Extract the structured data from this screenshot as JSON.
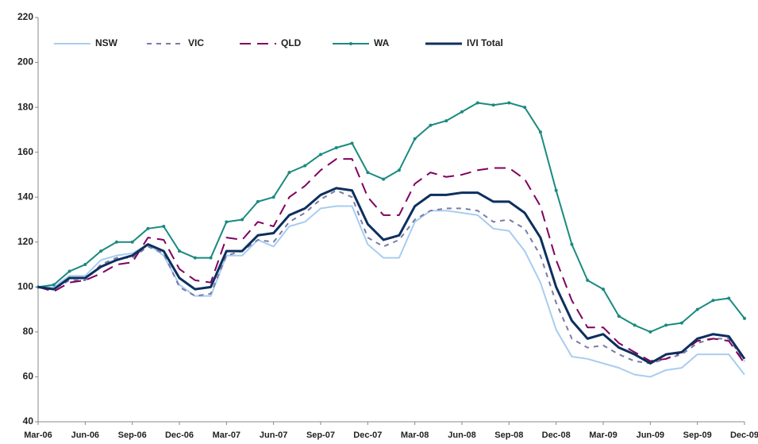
{
  "chart_data": {
    "type": "line",
    "categories": [
      "Mar-06",
      null,
      null,
      "Jun-06",
      null,
      null,
      "Sep-06",
      null,
      null,
      "Dec-06",
      null,
      null,
      "Mar-07",
      null,
      null,
      "Jun-07",
      null,
      null,
      "Sep-07",
      null,
      null,
      "Dec-07",
      null,
      null,
      "Mar-08",
      null,
      null,
      "Jun-08",
      null,
      null,
      "Sep-08",
      null,
      null,
      "Dec-08",
      null,
      null,
      "Mar-09",
      null,
      null,
      "Jun-09",
      null,
      null,
      "Sep-09",
      null,
      null,
      "Dec-09"
    ],
    "series": [
      {
        "name": "NSW",
        "color": "#a7cdf0",
        "dash": "solid",
        "values": [
          100,
          100,
          105,
          105,
          112,
          114,
          115,
          119,
          114,
          101,
          96,
          96,
          114,
          114,
          121,
          118,
          127,
          129,
          135,
          136,
          136,
          119,
          113,
          113,
          129,
          134,
          134,
          133,
          132,
          126,
          125,
          116,
          102,
          81,
          69,
          68,
          66,
          64,
          61,
          60,
          63,
          64,
          70,
          70,
          70,
          61
        ]
      },
      {
        "name": "VIC",
        "color": "#7a7aa8",
        "dash": "short",
        "values": [
          100,
          99,
          103,
          103,
          110,
          113,
          113,
          118,
          115,
          100,
          96,
          97,
          114,
          116,
          121,
          120,
          129,
          133,
          139,
          143,
          140,
          122,
          118,
          121,
          130,
          134,
          135,
          135,
          134,
          129,
          130,
          126,
          114,
          93,
          77,
          73,
          74,
          70,
          67,
          66,
          68,
          70,
          75,
          77,
          77,
          67
        ]
      },
      {
        "name": "QLD",
        "color": "#800060",
        "dash": "long",
        "values": [
          100,
          98,
          102,
          103,
          106,
          110,
          111,
          122,
          121,
          108,
          103,
          102,
          122,
          121,
          129,
          127,
          140,
          145,
          152,
          157,
          157,
          140,
          132,
          132,
          146,
          151,
          149,
          150,
          152,
          153,
          153,
          148,
          136,
          112,
          94,
          82,
          82,
          75,
          71,
          67,
          68,
          71,
          76,
          77,
          76,
          66
        ]
      },
      {
        "name": "WA",
        "color": "#1a8a80",
        "dash": "solid",
        "markers": true,
        "values": [
          100,
          101,
          107,
          110,
          116,
          120,
          120,
          126,
          127,
          116,
          113,
          113,
          129,
          130,
          138,
          140,
          151,
          154,
          159,
          162,
          164,
          151,
          148,
          152,
          166,
          172,
          174,
          178,
          182,
          181,
          182,
          180,
          169,
          143,
          119,
          103,
          99,
          87,
          83,
          80,
          83,
          84,
          90,
          94,
          95,
          86
        ]
      },
      {
        "name": "IVI Total",
        "color": "#0d2f5e",
        "dash": "solid",
        "width": 3,
        "values": [
          100,
          99,
          104,
          104,
          109,
          112,
          114,
          119,
          116,
          104,
          99,
          100,
          116,
          116,
          123,
          124,
          132,
          135,
          141,
          144,
          143,
          128,
          121,
          123,
          136,
          141,
          141,
          142,
          142,
          138,
          138,
          133,
          122,
          100,
          85,
          77,
          79,
          73,
          70,
          66,
          70,
          71,
          77,
          79,
          78,
          68
        ]
      }
    ],
    "ylim": [
      40,
      220
    ],
    "yticks": [
      40,
      60,
      80,
      100,
      120,
      140,
      160,
      180,
      200,
      220
    ],
    "grid": false,
    "legend": "top-left"
  }
}
